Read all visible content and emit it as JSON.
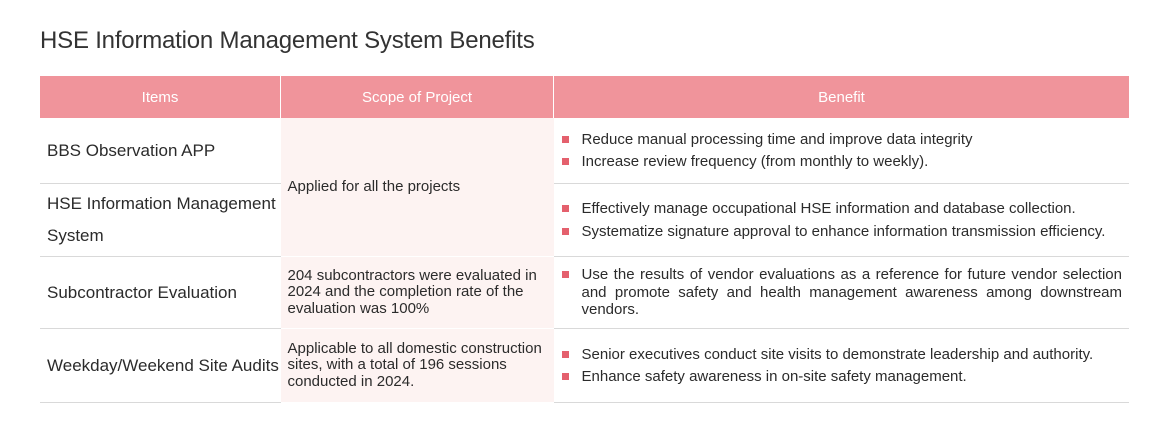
{
  "title": "HSE Information Management System Benefits",
  "table": {
    "headers": [
      "Items",
      "Scope of Project",
      "Benefit"
    ],
    "rows": [
      {
        "item": "BBS Observation APP",
        "scope": "Applied for all the projects",
        "benefits": [
          "Reduce manual processing time and improve data integrity",
          "Increase review frequency (from monthly to weekly)."
        ]
      },
      {
        "item": "HSE Information Management System",
        "benefits": [
          "Effectively manage occupational HSE information and database collection.",
          "Systematize signature approval to enhance information transmission efficiency."
        ]
      },
      {
        "item": "Subcontractor Evaluation",
        "scope": "204 subcontractors were evaluated in 2024 and the completion rate of the evaluation was 100%",
        "benefits": [
          "Use the results of vendor evaluations as a reference for future vendor selection and promote safety and health management awareness among downstream vendors."
        ]
      },
      {
        "item": "Weekday/Weekend Site Audits",
        "scope": "Applicable to all domestic construction sites, with a total of 196 sessions conducted in 2024.",
        "benefits": [
          "Senior executives conduct site visits to demonstrate leadership and authority.",
          "Enhance safety awareness in on-site safety management."
        ]
      }
    ]
  },
  "colors": {
    "header_bg": "#f0949b",
    "scope_bg": "#fdf3f2",
    "bullet": "#e4606d"
  }
}
